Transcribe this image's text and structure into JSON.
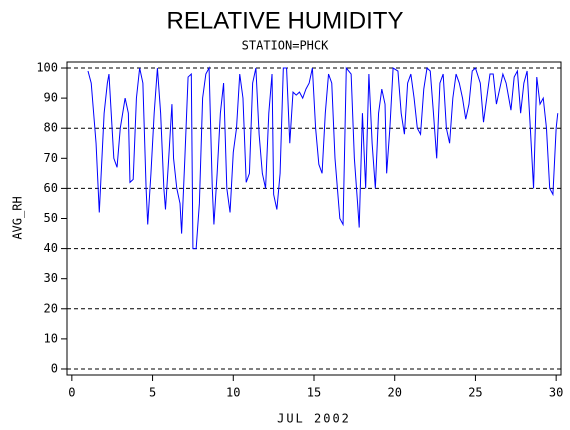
{
  "chart_data": {
    "type": "line",
    "title": "RELATIVE HUMIDITY",
    "subtitle": "STATION=PHCK",
    "ylabel": "AVG_RH",
    "xlabel": "JUL 2002",
    "xlim": [
      -0.3,
      30.3
    ],
    "ylim": [
      -2,
      102
    ],
    "xticks": [
      0,
      5,
      10,
      15,
      20,
      25,
      30
    ],
    "yticks": [
      0,
      10,
      20,
      30,
      40,
      50,
      60,
      70,
      80,
      90,
      100
    ],
    "ygrid": [
      0,
      20,
      40,
      60,
      80,
      100
    ],
    "grid_style": "dashed",
    "series": [
      {
        "name": "AVG_RH",
        "color": "#0000ff",
        "x": [
          1.0,
          1.2,
          1.5,
          1.7,
          2.0,
          2.2,
          2.3,
          2.6,
          2.8,
          3.0,
          3.3,
          3.5,
          3.6,
          3.8,
          4.0,
          4.2,
          4.4,
          4.6,
          4.7,
          4.9,
          5.1,
          5.3,
          5.5,
          5.7,
          5.8,
          6.0,
          6.2,
          6.3,
          6.5,
          6.7,
          6.8,
          7.0,
          7.2,
          7.4,
          7.5,
          7.7,
          7.9,
          8.1,
          8.3,
          8.5,
          8.7,
          8.8,
          9.0,
          9.2,
          9.4,
          9.6,
          9.8,
          10.0,
          10.2,
          10.4,
          10.6,
          10.8,
          11.0,
          11.2,
          11.4,
          11.6,
          11.8,
          12.0,
          12.2,
          12.4,
          12.5,
          12.7,
          12.9,
          13.1,
          13.3,
          13.5,
          13.7,
          13.9,
          14.1,
          14.3,
          14.5,
          14.7,
          14.9,
          15.1,
          15.3,
          15.5,
          15.7,
          15.9,
          16.1,
          16.3,
          16.6,
          16.8,
          17.0,
          17.3,
          17.5,
          17.7,
          17.8,
          18.0,
          18.2,
          18.4,
          18.6,
          18.8,
          19.0,
          19.2,
          19.4,
          19.5,
          19.7,
          19.9,
          20.2,
          20.4,
          20.6,
          20.8,
          21.0,
          21.2,
          21.4,
          21.6,
          21.8,
          22.0,
          22.2,
          22.4,
          22.6,
          22.8,
          23.0,
          23.2,
          23.4,
          23.6,
          23.8,
          24.0,
          24.2,
          24.4,
          24.6,
          24.8,
          25.0,
          25.3,
          25.5,
          25.7,
          25.9,
          26.1,
          26.3,
          26.5,
          26.7,
          26.9,
          27.2,
          27.4,
          27.6,
          27.8,
          28.0,
          28.2,
          28.4,
          28.6,
          28.8,
          29.0,
          29.2,
          29.4,
          29.6,
          29.8,
          30.0,
          30.1
        ],
        "values": [
          99,
          95,
          75,
          52,
          85,
          95,
          98,
          70,
          67,
          80,
          90,
          85,
          62,
          63,
          90,
          100,
          95,
          60,
          48,
          65,
          85,
          100,
          85,
          60,
          53,
          70,
          88,
          70,
          60,
          55,
          45,
          70,
          97,
          98,
          40,
          40,
          55,
          90,
          98,
          100,
          60,
          48,
          65,
          85,
          95,
          60,
          52,
          72,
          80,
          98,
          90,
          62,
          65,
          95,
          100,
          78,
          65,
          60,
          85,
          98,
          58,
          53,
          65,
          100,
          100,
          75,
          92,
          91,
          92,
          90,
          93,
          95,
          100,
          80,
          68,
          65,
          85,
          98,
          95,
          70,
          50,
          48,
          100,
          98,
          70,
          55,
          47,
          85,
          60,
          98,
          75,
          60,
          85,
          93,
          88,
          65,
          80,
          100,
          99,
          85,
          78,
          95,
          98,
          90,
          80,
          78,
          93,
          100,
          99,
          85,
          70,
          95,
          98,
          80,
          75,
          90,
          98,
          95,
          90,
          83,
          88,
          99,
          100,
          95,
          82,
          90,
          98,
          98,
          88,
          93,
          98,
          95,
          86,
          97,
          99,
          85,
          95,
          99,
          80,
          60,
          97,
          88,
          90,
          80,
          60,
          58,
          80,
          85
        ]
      }
    ]
  }
}
